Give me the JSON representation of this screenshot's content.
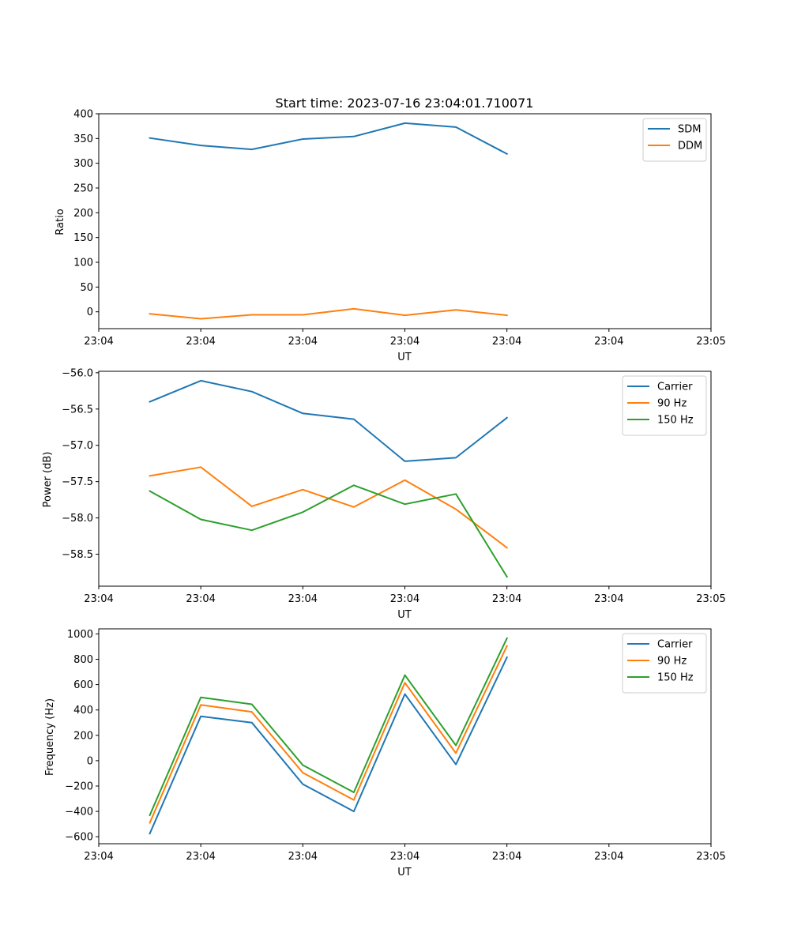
{
  "chart_data": [
    {
      "type": "line",
      "title": "Start time: 2023-07-16 23:04:01.710071",
      "xlabel": "UT",
      "ylabel": "Ratio",
      "x": [
        1,
        2,
        3,
        4,
        5,
        6,
        7,
        8
      ],
      "xlim": [
        0,
        12
      ],
      "x_ticks": [
        {
          "value": 0,
          "label": "23:04"
        },
        {
          "value": 2,
          "label": "23:04"
        },
        {
          "value": 4,
          "label": "23:04"
        },
        {
          "value": 6,
          "label": "23:04"
        },
        {
          "value": 8,
          "label": "23:04"
        },
        {
          "value": 10,
          "label": "23:04"
        },
        {
          "value": 12,
          "label": "23:05"
        }
      ],
      "ylim": [
        -34,
        400
      ],
      "y_ticks": [
        0,
        50,
        100,
        150,
        200,
        250,
        300,
        350,
        400
      ],
      "legend_position": "top-right",
      "series": [
        {
          "name": "SDM",
          "color": "#1f77b4",
          "values": [
            351,
            336,
            328,
            349,
            354,
            381,
            373,
            319
          ]
        },
        {
          "name": "DDM",
          "color": "#ff7f0e",
          "values": [
            -4,
            -14,
            -6,
            -6,
            6,
            -7,
            4,
            -7
          ]
        }
      ]
    },
    {
      "type": "line",
      "title": "",
      "xlabel": "UT",
      "ylabel": "Power (dB)",
      "x": [
        1,
        2,
        3,
        4,
        5,
        6,
        7,
        8
      ],
      "xlim": [
        0,
        12
      ],
      "x_ticks": [
        {
          "value": 0,
          "label": "23:04"
        },
        {
          "value": 2,
          "label": "23:04"
        },
        {
          "value": 4,
          "label": "23:04"
        },
        {
          "value": 6,
          "label": "23:04"
        },
        {
          "value": 8,
          "label": "23:04"
        },
        {
          "value": 10,
          "label": "23:04"
        },
        {
          "value": 12,
          "label": "23:05"
        }
      ],
      "ylim": [
        -58.94,
        -55.98
      ],
      "y_ticks": [
        -58.5,
        -58.0,
        -57.5,
        -57.0,
        -56.5,
        -56.0
      ],
      "y_tick_labels": [
        "−58.5",
        "−58.0",
        "−57.5",
        "−57.0",
        "−56.5",
        "−56.0"
      ],
      "legend_position": "top-right",
      "series": [
        {
          "name": "Carrier",
          "color": "#1f77b4",
          "values": [
            -56.4,
            -56.11,
            -56.26,
            -56.56,
            -56.64,
            -57.22,
            -57.17,
            -56.62
          ]
        },
        {
          "name": "90 Hz",
          "color": "#ff7f0e",
          "values": [
            -57.42,
            -57.3,
            -57.84,
            -57.61,
            -57.85,
            -57.48,
            -57.88,
            -58.41
          ]
        },
        {
          "name": "150 Hz",
          "color": "#2ca02c",
          "values": [
            -57.63,
            -58.02,
            -58.17,
            -57.92,
            -57.55,
            -57.81,
            -57.67,
            -58.81
          ]
        }
      ]
    },
    {
      "type": "line",
      "title": "",
      "xlabel": "UT",
      "ylabel": "Frequency (Hz)",
      "x": [
        1,
        2,
        3,
        4,
        5,
        6,
        7,
        8
      ],
      "xlim": [
        0,
        12
      ],
      "x_ticks": [
        {
          "value": 0,
          "label": "23:04"
        },
        {
          "value": 2,
          "label": "23:04"
        },
        {
          "value": 4,
          "label": "23:04"
        },
        {
          "value": 6,
          "label": "23:04"
        },
        {
          "value": 8,
          "label": "23:04"
        },
        {
          "value": 10,
          "label": "23:04"
        },
        {
          "value": 12,
          "label": "23:05"
        }
      ],
      "ylim": [
        -655,
        1040
      ],
      "y_ticks": [
        -600,
        -400,
        -200,
        0,
        200,
        400,
        600,
        800,
        1000
      ],
      "y_tick_labels": [
        "−600",
        "−400",
        "−200",
        "0",
        "200",
        "400",
        "600",
        "800",
        "1000"
      ],
      "legend_position": "top-right",
      "series": [
        {
          "name": "Carrier",
          "color": "#1f77b4",
          "values": [
            -575,
            350,
            300,
            -185,
            -400,
            525,
            -30,
            815
          ]
        },
        {
          "name": "90 Hz",
          "color": "#ff7f0e",
          "values": [
            -490,
            440,
            385,
            -95,
            -310,
            615,
            60,
            905
          ]
        },
        {
          "name": "150 Hz",
          "color": "#2ca02c",
          "values": [
            -430,
            500,
            445,
            -35,
            -250,
            675,
            120,
            965
          ]
        }
      ]
    }
  ]
}
